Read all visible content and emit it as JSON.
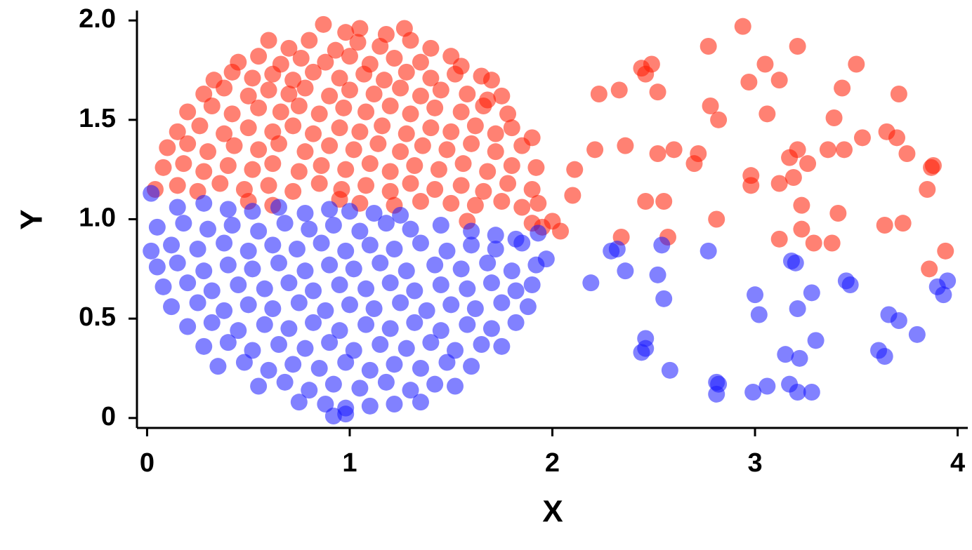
{
  "chart_data": {
    "type": "scatter",
    "x_label": "X",
    "y_label": "Y",
    "xlim": [
      -0.05,
      4.05
    ],
    "ylim": [
      -0.05,
      2.05
    ],
    "xticks": [
      0,
      1,
      2,
      3,
      4
    ],
    "yticks": [
      0,
      0.5,
      {
        "value": 1,
        "label": "1.0"
      },
      1.5,
      {
        "value": 2,
        "label": "2.0"
      }
    ],
    "grid": false,
    "opacity": 0.55,
    "series": [
      {
        "color": "#ff1a00",
        "x": [
          0.87,
          0.98,
          1.05,
          1.18,
          1.27,
          0.6,
          0.7,
          0.8,
          0.93,
          1.04,
          1.15,
          1.3,
          1.4,
          0.45,
          0.55,
          0.66,
          0.76,
          0.88,
          1.0,
          1.1,
          1.22,
          1.35,
          1.5,
          1.55,
          0.33,
          0.42,
          0.52,
          0.62,
          0.72,
          0.82,
          0.95,
          1.07,
          1.17,
          1.28,
          1.4,
          1.52,
          1.65,
          1.7,
          0.28,
          0.38,
          0.5,
          0.6,
          0.7,
          0.78,
          0.9,
          1.0,
          1.12,
          1.25,
          1.35,
          1.45,
          1.58,
          1.68,
          1.75,
          0.2,
          0.32,
          0.42,
          0.55,
          0.66,
          0.75,
          0.85,
          0.97,
          1.08,
          1.2,
          1.3,
          1.42,
          1.55,
          1.66,
          1.78,
          0.15,
          0.26,
          0.38,
          0.5,
          0.62,
          0.72,
          0.82,
          0.95,
          1.05,
          1.16,
          1.28,
          1.4,
          1.5,
          1.62,
          1.72,
          1.8,
          0.1,
          0.2,
          0.3,
          0.43,
          0.55,
          0.65,
          0.78,
          0.9,
          1.02,
          1.14,
          1.25,
          1.36,
          1.48,
          1.6,
          1.72,
          1.85,
          1.9,
          0.08,
          0.18,
          0.28,
          0.4,
          0.52,
          0.62,
          0.75,
          0.86,
          0.98,
          1.1,
          1.2,
          1.32,
          1.44,
          1.56,
          1.68,
          1.8,
          1.92,
          0.04,
          0.15,
          0.25,
          0.36,
          0.48,
          0.6,
          0.72,
          0.85,
          0.96,
          1.08,
          1.2,
          1.3,
          1.42,
          1.55,
          1.66,
          1.78,
          1.9,
          0.5,
          0.62,
          0.95,
          1.05,
          1.22,
          1.35,
          1.5,
          1.62,
          1.75,
          1.85,
          1.93,
          1.58,
          1.9,
          1.95,
          2.0,
          2.04,
          2.1,
          2.11,
          2.21,
          2.23,
          2.33,
          2.36,
          2.34,
          2.44,
          2.46,
          2.49,
          2.52,
          2.52,
          2.6,
          2.46,
          2.55,
          2.57,
          2.7,
          2.72,
          2.77,
          2.78,
          2.82,
          2.81,
          2.94,
          2.97,
          2.98,
          2.98,
          3.05,
          3.06,
          3.12,
          3.12,
          3.12,
          3.17,
          3.19,
          3.21,
          3.21,
          3.23,
          3.23,
          3.26,
          3.29,
          3.36,
          3.38,
          3.39,
          3.41,
          3.43,
          3.44,
          3.5,
          3.53,
          3.64,
          3.65,
          3.7,
          3.71,
          3.73,
          3.75,
          3.85,
          3.86,
          3.88,
          3.87,
          3.94
        ],
        "values": [
          1.98,
          1.94,
          1.96,
          1.93,
          1.96,
          1.9,
          1.86,
          1.9,
          1.85,
          1.89,
          1.87,
          1.9,
          1.86,
          1.79,
          1.82,
          1.78,
          1.81,
          1.79,
          1.82,
          1.78,
          1.81,
          1.79,
          1.82,
          1.77,
          1.7,
          1.74,
          1.71,
          1.73,
          1.7,
          1.74,
          1.71,
          1.73,
          1.7,
          1.74,
          1.71,
          1.73,
          1.72,
          1.7,
          1.63,
          1.66,
          1.62,
          1.65,
          1.63,
          1.66,
          1.62,
          1.65,
          1.63,
          1.66,
          1.62,
          1.65,
          1.63,
          1.6,
          1.62,
          1.54,
          1.57,
          1.53,
          1.56,
          1.54,
          1.57,
          1.53,
          1.56,
          1.54,
          1.57,
          1.53,
          1.56,
          1.54,
          1.57,
          1.53,
          1.44,
          1.47,
          1.43,
          1.46,
          1.44,
          1.47,
          1.43,
          1.46,
          1.44,
          1.47,
          1.43,
          1.46,
          1.44,
          1.47,
          1.43,
          1.46,
          1.36,
          1.38,
          1.34,
          1.37,
          1.35,
          1.38,
          1.34,
          1.37,
          1.35,
          1.38,
          1.34,
          1.37,
          1.35,
          1.38,
          1.34,
          1.37,
          1.41,
          1.26,
          1.28,
          1.24,
          1.27,
          1.25,
          1.28,
          1.24,
          1.27,
          1.25,
          1.28,
          1.24,
          1.27,
          1.25,
          1.28,
          1.24,
          1.27,
          1.26,
          1.15,
          1.17,
          1.14,
          1.18,
          1.15,
          1.17,
          1.14,
          1.18,
          1.15,
          1.17,
          1.14,
          1.18,
          1.15,
          1.17,
          1.14,
          1.18,
          1.15,
          1.09,
          1.07,
          1.1,
          1.08,
          1.07,
          1.09,
          1.08,
          1.07,
          1.09,
          1.06,
          1.08,
          0.99,
          0.98,
          0.96,
          0.99,
          0.94,
          1.12,
          1.25,
          1.35,
          1.63,
          1.65,
          1.37,
          0.91,
          1.76,
          1.73,
          1.78,
          1.64,
          1.33,
          1.35,
          1.09,
          1.09,
          0.91,
          1.28,
          1.33,
          1.87,
          1.57,
          1.5,
          1.0,
          1.97,
          1.69,
          1.22,
          1.17,
          1.78,
          1.53,
          1.7,
          1.18,
          0.9,
          1.31,
          1.21,
          1.35,
          1.87,
          1.07,
          0.95,
          1.28,
          0.88,
          1.35,
          0.88,
          1.51,
          1.03,
          1.66,
          1.35,
          1.78,
          1.41,
          0.97,
          1.44,
          1.41,
          1.63,
          0.98,
          1.33,
          1.15,
          0.75,
          1.27,
          1.26,
          0.84
        ]
      },
      {
        "color": "#1a1aff",
        "x": [
          0.02,
          0.15,
          0.28,
          0.4,
          0.52,
          0.65,
          0.78,
          0.9,
          1.0,
          1.12,
          1.25,
          0.05,
          0.18,
          0.3,
          0.42,
          0.55,
          0.68,
          0.8,
          0.92,
          1.05,
          1.18,
          1.3,
          1.45,
          1.6,
          1.72,
          1.82,
          1.93,
          0.02,
          0.12,
          0.25,
          0.38,
          0.5,
          0.62,
          0.74,
          0.86,
          0.98,
          1.1,
          1.22,
          1.35,
          1.48,
          1.6,
          1.72,
          1.85,
          1.97,
          0.05,
          0.15,
          0.28,
          0.4,
          0.52,
          0.65,
          0.78,
          0.9,
          1.02,
          1.15,
          1.28,
          1.42,
          1.55,
          1.68,
          1.8,
          1.92,
          0.08,
          0.2,
          0.32,
          0.45,
          0.58,
          0.7,
          0.82,
          0.95,
          1.08,
          1.2,
          1.32,
          1.45,
          1.58,
          1.7,
          1.82,
          1.9,
          0.12,
          0.25,
          0.38,
          0.5,
          0.62,
          0.75,
          0.88,
          1.0,
          1.12,
          1.25,
          1.38,
          1.5,
          1.62,
          1.75,
          1.88,
          0.2,
          0.32,
          0.45,
          0.58,
          0.7,
          0.82,
          0.95,
          1.08,
          1.2,
          1.32,
          1.45,
          1.58,
          1.7,
          1.82,
          0.28,
          0.4,
          0.52,
          0.65,
          0.78,
          0.9,
          1.02,
          1.15,
          1.28,
          1.4,
          1.52,
          1.65,
          1.75,
          0.35,
          0.48,
          0.6,
          0.72,
          0.85,
          0.98,
          1.1,
          1.22,
          1.35,
          1.48,
          1.6,
          0.55,
          0.68,
          0.8,
          0.92,
          1.05,
          1.18,
          1.3,
          1.42,
          1.52,
          0.75,
          0.88,
          0.98,
          1.1,
          1.22,
          1.35,
          0.92,
          0.98,
          2.19,
          2.29,
          2.32,
          2.36,
          2.44,
          2.46,
          2.46,
          2.52,
          2.54,
          2.55,
          2.58,
          2.77,
          2.81,
          2.81,
          2.82,
          2.99,
          3.0,
          3.02,
          3.06,
          3.15,
          3.17,
          3.18,
          3.2,
          3.21,
          3.21,
          3.22,
          3.28,
          3.28,
          3.3,
          3.45,
          3.47,
          3.61,
          3.64,
          3.66,
          3.71,
          3.8,
          3.9,
          3.93,
          3.95
        ],
        "values": [
          1.13,
          1.06,
          1.08,
          1.05,
          1.04,
          1.06,
          1.03,
          1.05,
          1.04,
          1.03,
          1.02,
          0.96,
          0.98,
          0.95,
          0.97,
          0.94,
          0.98,
          0.95,
          0.97,
          0.94,
          0.98,
          0.95,
          0.97,
          0.94,
          0.92,
          0.9,
          0.93,
          0.84,
          0.87,
          0.85,
          0.88,
          0.84,
          0.87,
          0.85,
          0.88,
          0.84,
          0.87,
          0.85,
          0.88,
          0.84,
          0.87,
          0.85,
          0.88,
          0.8,
          0.76,
          0.78,
          0.74,
          0.77,
          0.75,
          0.78,
          0.74,
          0.77,
          0.75,
          0.78,
          0.74,
          0.77,
          0.75,
          0.78,
          0.74,
          0.77,
          0.66,
          0.68,
          0.64,
          0.67,
          0.65,
          0.68,
          0.64,
          0.67,
          0.65,
          0.68,
          0.64,
          0.67,
          0.65,
          0.68,
          0.64,
          0.67,
          0.56,
          0.58,
          0.54,
          0.57,
          0.55,
          0.58,
          0.54,
          0.57,
          0.55,
          0.58,
          0.54,
          0.57,
          0.55,
          0.58,
          0.56,
          0.46,
          0.48,
          0.44,
          0.47,
          0.45,
          0.48,
          0.44,
          0.47,
          0.45,
          0.48,
          0.44,
          0.47,
          0.45,
          0.48,
          0.36,
          0.38,
          0.34,
          0.37,
          0.35,
          0.38,
          0.34,
          0.37,
          0.35,
          0.38,
          0.34,
          0.37,
          0.36,
          0.26,
          0.28,
          0.24,
          0.27,
          0.25,
          0.28,
          0.24,
          0.27,
          0.25,
          0.28,
          0.26,
          0.16,
          0.18,
          0.14,
          0.17,
          0.15,
          0.18,
          0.14,
          0.17,
          0.16,
          0.08,
          0.07,
          0.05,
          0.06,
          0.07,
          0.08,
          0.01,
          0.02,
          0.68,
          0.84,
          0.85,
          0.74,
          0.33,
          0.35,
          0.4,
          0.72,
          0.87,
          0.6,
          0.24,
          0.84,
          0.18,
          0.12,
          0.17,
          0.13,
          0.62,
          0.52,
          0.16,
          0.32,
          0.17,
          0.79,
          0.78,
          0.13,
          0.55,
          0.3,
          0.63,
          0.13,
          0.39,
          0.69,
          0.67,
          0.34,
          0.31,
          0.52,
          0.49,
          0.42,
          0.66,
          0.62,
          0.69
        ]
      }
    ]
  }
}
